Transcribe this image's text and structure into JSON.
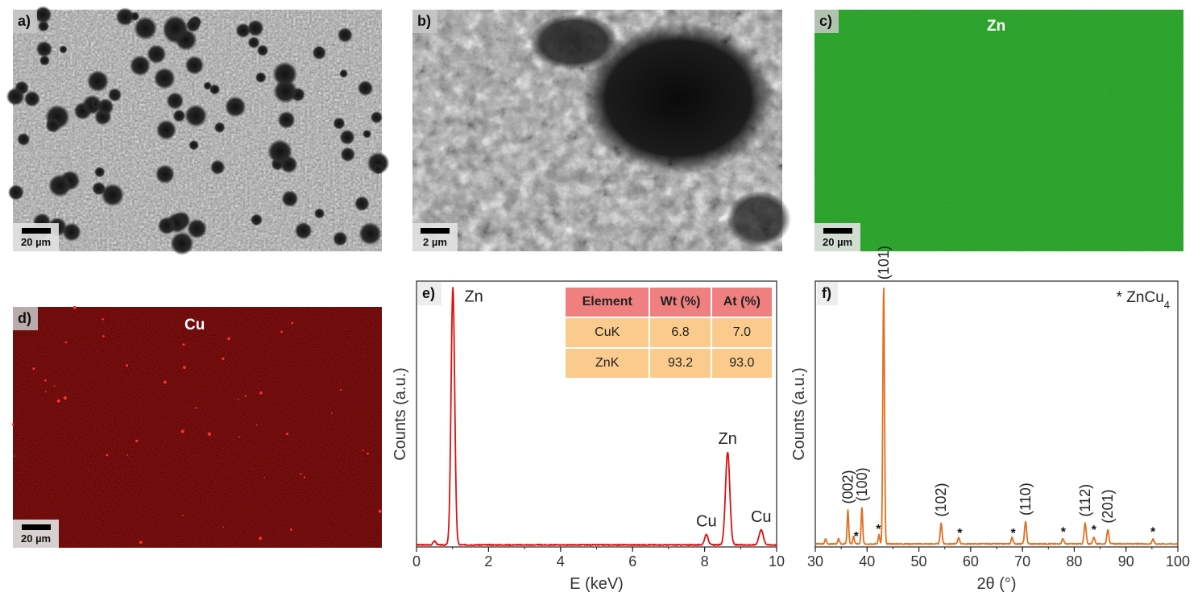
{
  "panels": {
    "a": {
      "label": "a)",
      "scale": "20 µm"
    },
    "b": {
      "label": "b)",
      "scale": "2 µm"
    },
    "c": {
      "label": "c)",
      "element": "Zn",
      "scale": "20 µm"
    },
    "d": {
      "label": "d)",
      "element": "Cu",
      "scale": "20 µm"
    },
    "e": {
      "label": "e)"
    },
    "f": {
      "label": "f)"
    }
  },
  "colors": {
    "zn_map": "#2aa32a",
    "cu_map": "#7a0a0a",
    "edx_line": "#e01010",
    "xrd_line": "#e07020",
    "table_header": "#f08080",
    "table_cell": "#fbcb8e"
  },
  "edx_table": {
    "headers": [
      "Element",
      "Wt (%)",
      "At (%)"
    ],
    "rows": [
      [
        "CuK",
        "6.8",
        "7.0"
      ],
      [
        "ZnK",
        "93.2",
        "93.0"
      ]
    ]
  },
  "chart_data": [
    {
      "type": "line",
      "panel": "e",
      "xlabel": "E (keV)",
      "ylabel": "Counts (a.u.)",
      "xlim": [
        0,
        10
      ],
      "ylim": [
        0,
        1
      ],
      "xticks": [
        0,
        2,
        4,
        6,
        8,
        10
      ],
      "series": [
        {
          "color": "#e01010",
          "peaks": [
            {
              "x": 0.5,
              "y": 0.015,
              "w": 0.04
            },
            {
              "x": 1.01,
              "y": 1.0,
              "w": 0.05
            },
            {
              "x": 8.05,
              "y": 0.04,
              "w": 0.05
            },
            {
              "x": 8.64,
              "y": 0.36,
              "w": 0.06
            },
            {
              "x": 9.57,
              "y": 0.058,
              "w": 0.06
            }
          ],
          "baseline": 0.008
        }
      ],
      "annotations": [
        {
          "text": "Zn",
          "x": 1.01
        },
        {
          "text": "Zn",
          "x": 8.64
        },
        {
          "text": "Cu",
          "x": 8.05
        },
        {
          "text": "Cu",
          "x": 9.57
        }
      ]
    },
    {
      "type": "line",
      "panel": "f",
      "xlabel": "2θ (°)",
      "ylabel": "Counts (a.u.)",
      "xlim": [
        30,
        100
      ],
      "ylim": [
        0,
        1
      ],
      "xticks": [
        30,
        40,
        50,
        60,
        70,
        80,
        90,
        100
      ],
      "legend": {
        "marker": "*",
        "text": "ZnCu",
        "sub": "4"
      },
      "series": [
        {
          "color": "#e07020",
          "peaks": [
            {
              "x": 32.0,
              "y": 0.02,
              "w": 0.15
            },
            {
              "x": 34.5,
              "y": 0.02,
              "w": 0.15
            },
            {
              "x": 36.3,
              "y": 0.13,
              "w": 0.15
            },
            {
              "x": 37.4,
              "y": 0.03,
              "w": 0.15
            },
            {
              "x": 39.0,
              "y": 0.14,
              "w": 0.15
            },
            {
              "x": 42.3,
              "y": 0.035,
              "w": 0.15
            },
            {
              "x": 43.2,
              "y": 1.0,
              "w": 0.16
            },
            {
              "x": 54.3,
              "y": 0.08,
              "w": 0.18
            },
            {
              "x": 57.7,
              "y": 0.025,
              "w": 0.18
            },
            {
              "x": 68.0,
              "y": 0.025,
              "w": 0.18
            },
            {
              "x": 70.6,
              "y": 0.085,
              "w": 0.2
            },
            {
              "x": 77.8,
              "y": 0.02,
              "w": 0.2
            },
            {
              "x": 82.1,
              "y": 0.08,
              "w": 0.2
            },
            {
              "x": 83.8,
              "y": 0.025,
              "w": 0.2
            },
            {
              "x": 86.5,
              "y": 0.055,
              "w": 0.2
            },
            {
              "x": 95.2,
              "y": 0.018,
              "w": 0.2
            }
          ],
          "baseline": 0.012
        }
      ],
      "peak_labels": [
        {
          "text": "(002)",
          "x": 36.3
        },
        {
          "text": "(100)",
          "x": 39.0
        },
        {
          "text": "(101)",
          "x": 43.2
        },
        {
          "text": "(102)",
          "x": 54.3
        },
        {
          "text": "(110)",
          "x": 70.6
        },
        {
          "text": "(112)",
          "x": 82.1
        },
        {
          "text": "(201)",
          "x": 86.5
        }
      ],
      "star_markers": [
        37.9,
        42.2,
        57.9,
        68.2,
        77.9,
        83.8,
        95.2
      ]
    }
  ]
}
